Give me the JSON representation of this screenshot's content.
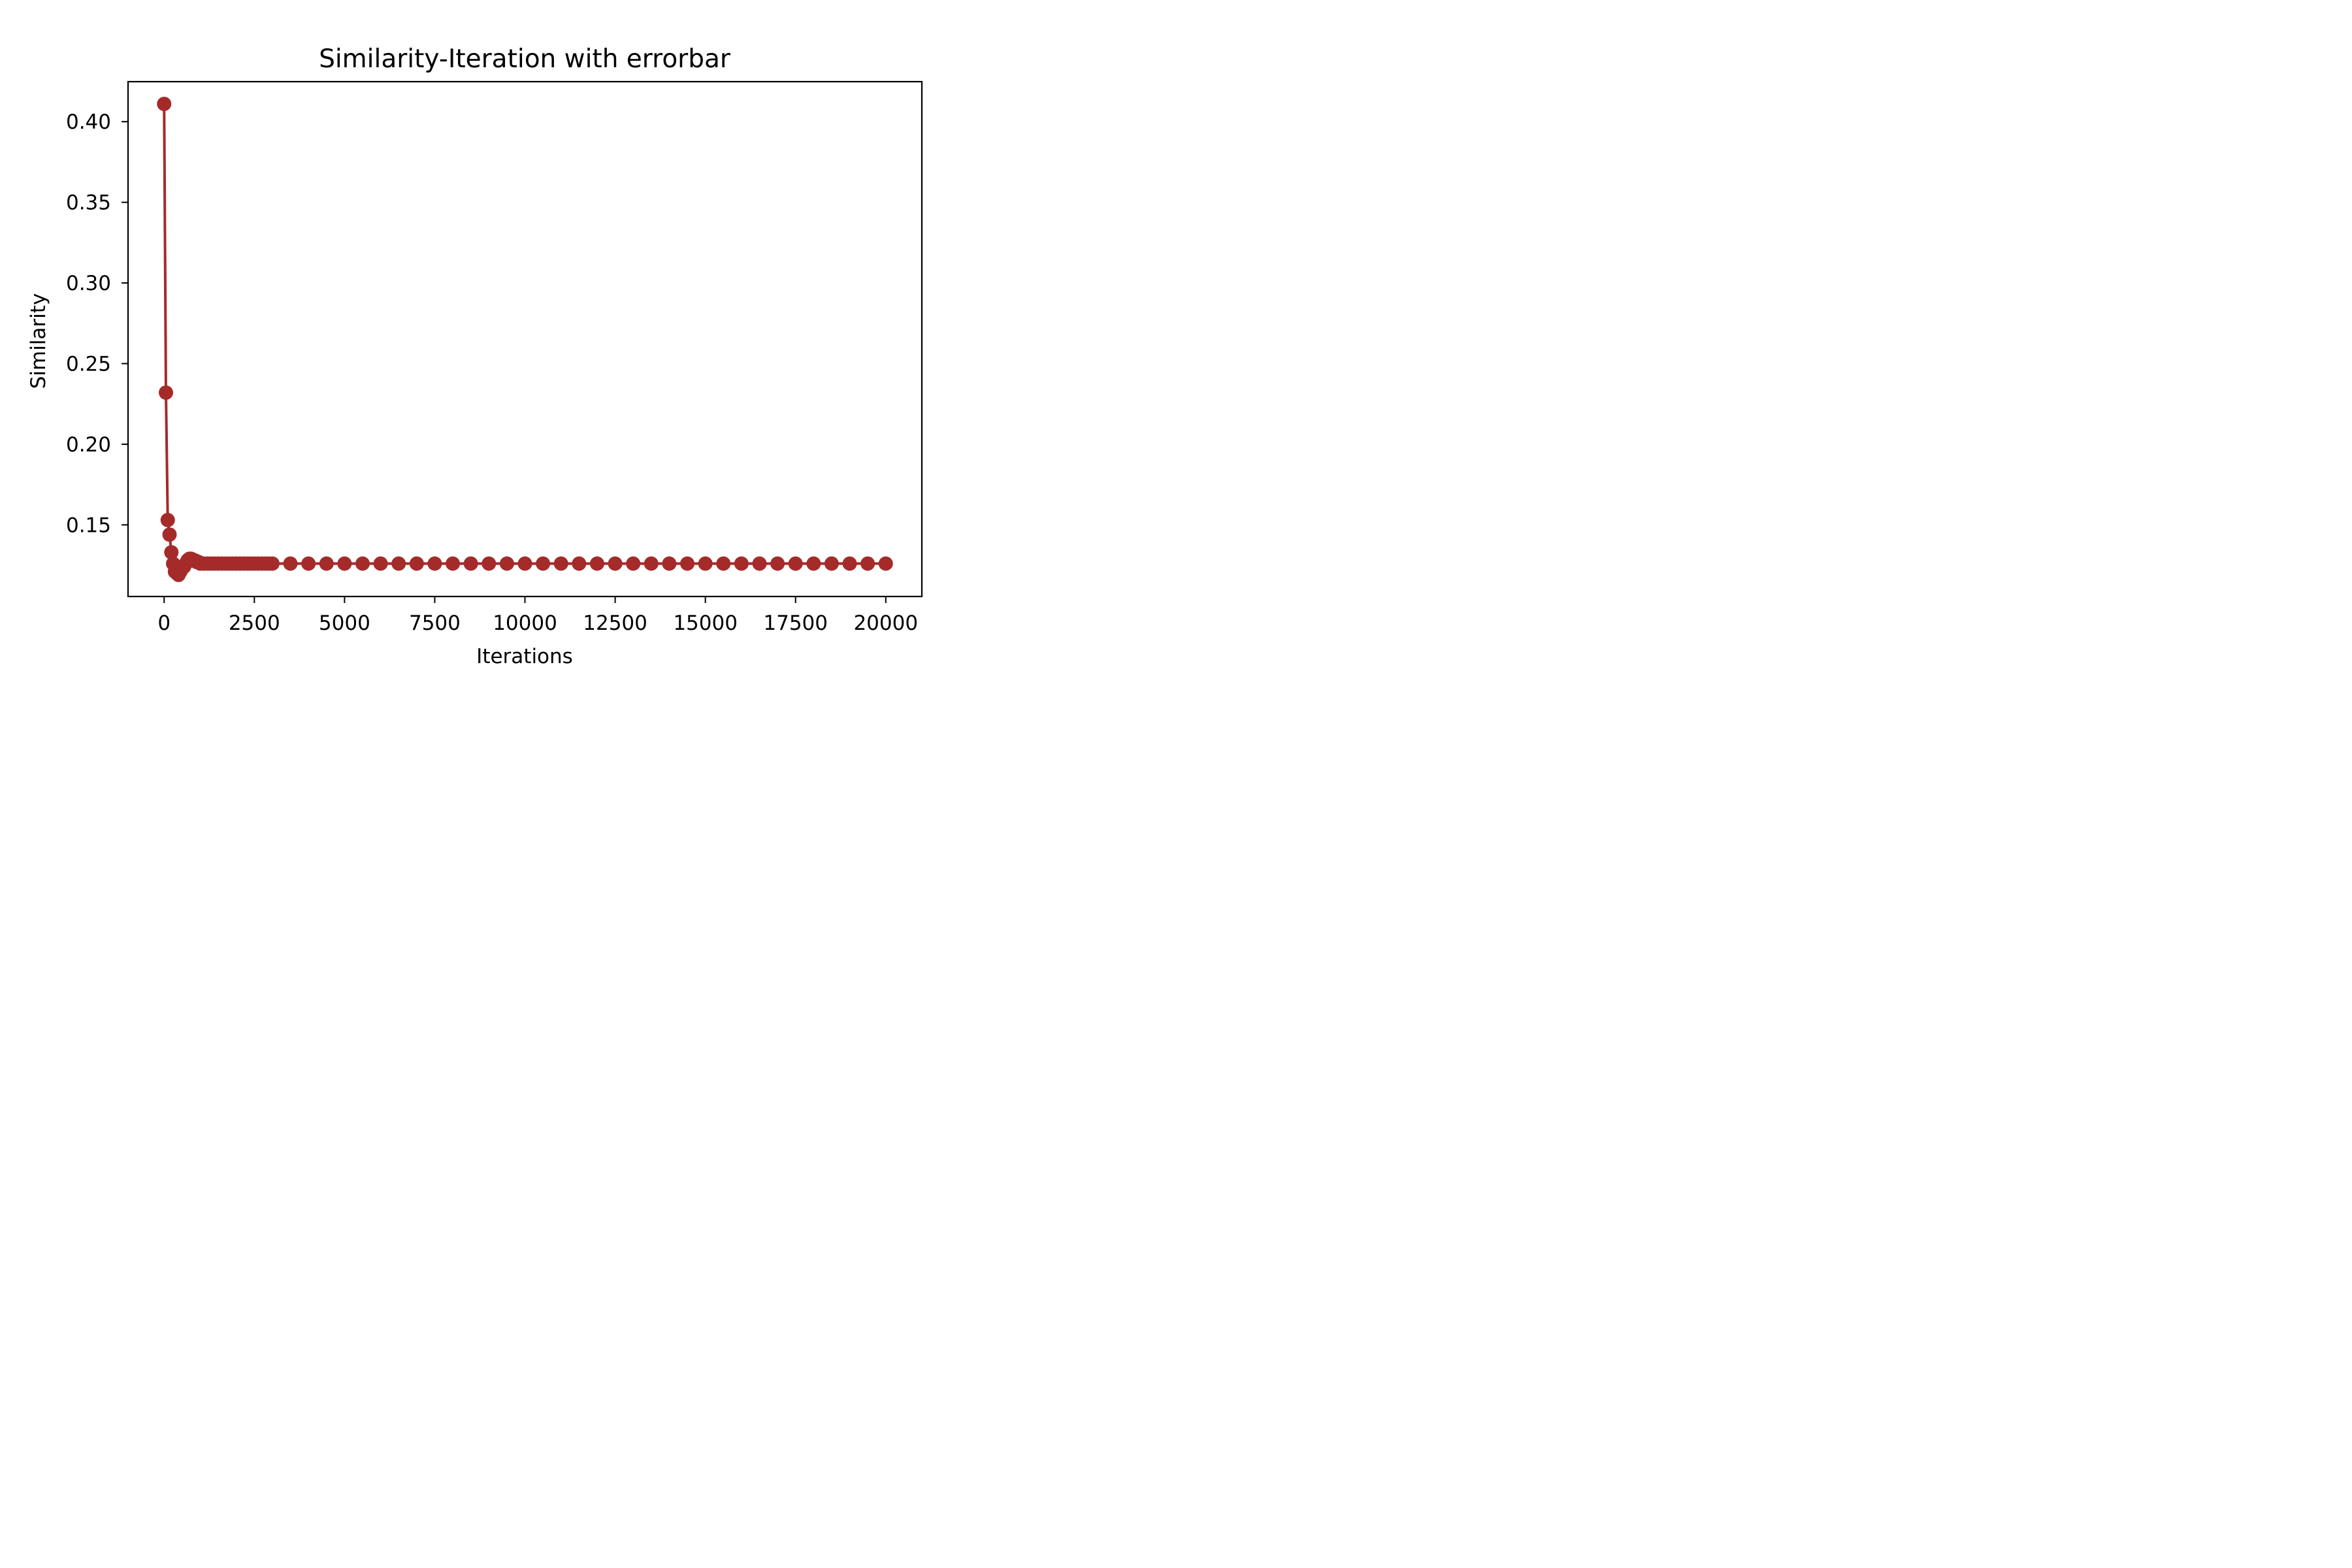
{
  "chart_data": {
    "type": "line",
    "title": "Similarity-Iteration with errorbar",
    "xlabel": "Iterations",
    "ylabel": "Similarity",
    "xlim": [
      -1000,
      21000
    ],
    "ylim": [
      0.1056,
      0.4248
    ],
    "xticks": [
      0,
      2500,
      5000,
      7500,
      10000,
      12500,
      15000,
      17500,
      20000
    ],
    "xtick_labels": [
      "0",
      "2500",
      "5000",
      "7500",
      "10000",
      "12500",
      "15000",
      "17500",
      "20000"
    ],
    "yticks": [
      0.15,
      0.2,
      0.25,
      0.3,
      0.35,
      0.4
    ],
    "ytick_labels": [
      "0.15",
      "0.20",
      "0.25",
      "0.30",
      "0.35",
      "0.40"
    ],
    "grid": false,
    "color": "#a52a2a",
    "markers": true,
    "series": [
      {
        "x": [
          0,
          50,
          100,
          150,
          200,
          250,
          300,
          350,
          400,
          450,
          500,
          550,
          600,
          650,
          700,
          750,
          800,
          850,
          900,
          950,
          1000,
          1100,
          1200,
          1300,
          1400,
          1500,
          1600,
          1700,
          1800,
          1900,
          2000,
          2100,
          2200,
          2300,
          2400,
          2500,
          2600,
          2700,
          2800,
          2900,
          3000,
          3500,
          4000,
          4500,
          5000,
          5500,
          6000,
          6500,
          7000,
          7500,
          8000,
          8500,
          9000,
          9500,
          10000,
          10500,
          11000,
          11500,
          12000,
          12500,
          13000,
          13500,
          14000,
          14500,
          15000,
          15500,
          16000,
          16500,
          17000,
          17500,
          18000,
          18500,
          19000,
          19500,
          20000
        ],
        "y": [
          0.411,
          0.232,
          0.153,
          0.144,
          0.133,
          0.126,
          0.121,
          0.12,
          0.119,
          0.121,
          0.123,
          0.124,
          0.126,
          0.128,
          0.129,
          0.129,
          0.128,
          0.128,
          0.127,
          0.127,
          0.126,
          0.126,
          0.126,
          0.126,
          0.126,
          0.126,
          0.126,
          0.126,
          0.126,
          0.126,
          0.126,
          0.126,
          0.126,
          0.126,
          0.126,
          0.126,
          0.126,
          0.126,
          0.126,
          0.126,
          0.126,
          0.126,
          0.126,
          0.126,
          0.126,
          0.126,
          0.126,
          0.126,
          0.126,
          0.126,
          0.126,
          0.126,
          0.126,
          0.126,
          0.126,
          0.126,
          0.126,
          0.126,
          0.126,
          0.126,
          0.126,
          0.126,
          0.126,
          0.126,
          0.126,
          0.126,
          0.126,
          0.126,
          0.126,
          0.126,
          0.126,
          0.126,
          0.126,
          0.126,
          0.126
        ]
      }
    ]
  }
}
